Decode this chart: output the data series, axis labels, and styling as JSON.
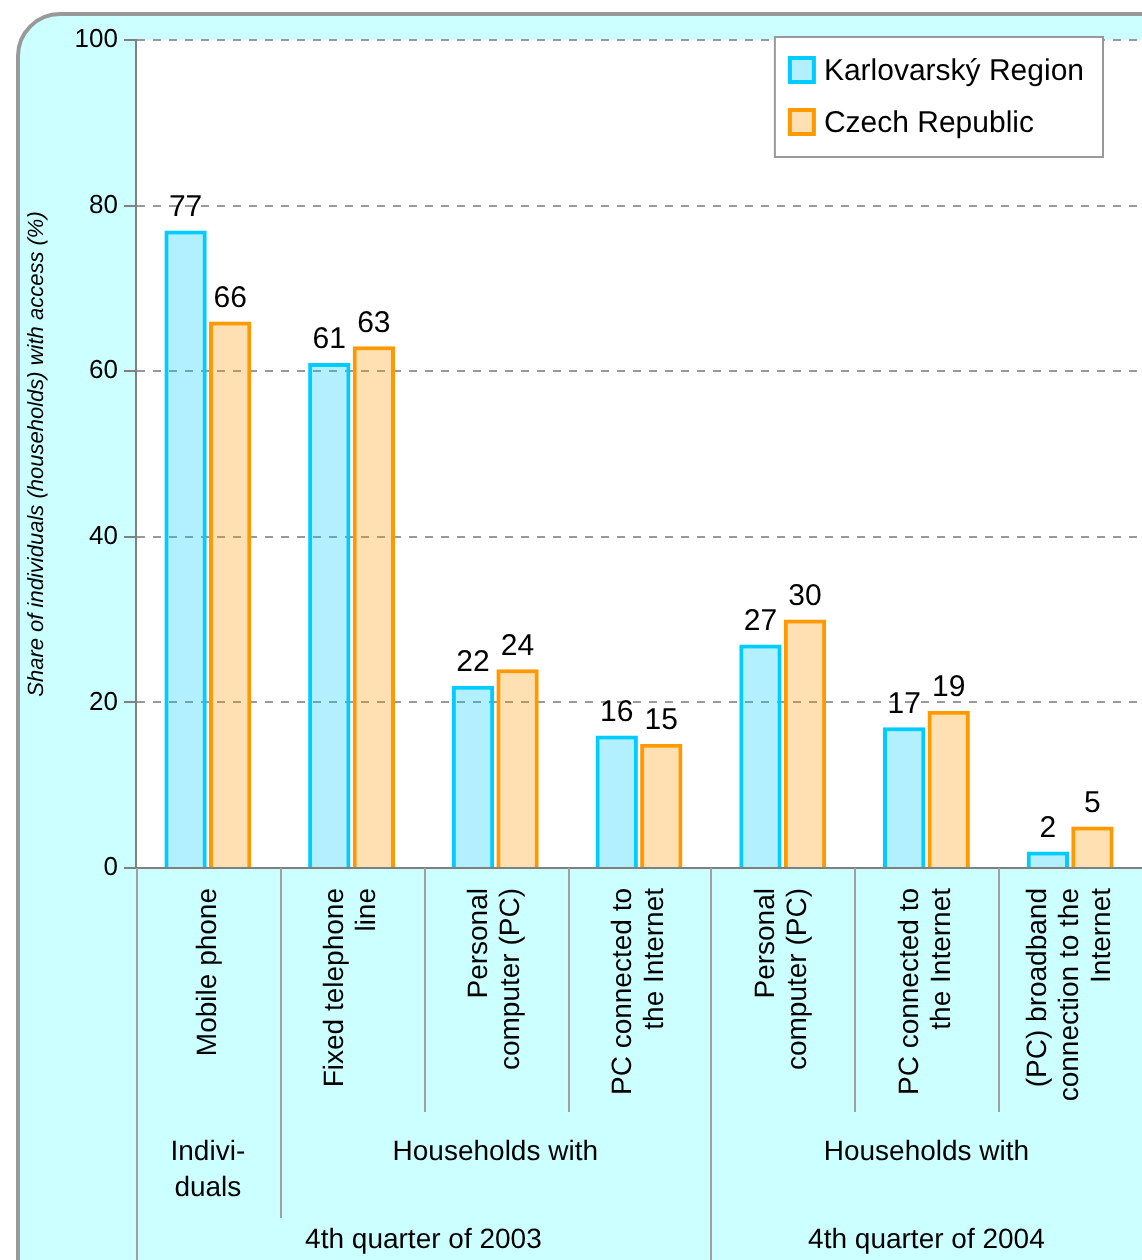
{
  "chart_data": {
    "type": "bar",
    "categories": [
      "Mobile phone",
      "Fixed telephone line",
      "Personal computer (PC)",
      "PC connected to the Internet",
      "Personal computer (PC)",
      "PC connected to the Internet",
      "(PC) broadband connection to the Internet"
    ],
    "series": [
      {
        "name": "Karlovarský Region",
        "color": "#00ccff",
        "values": [
          77,
          61,
          22,
          16,
          27,
          17,
          2
        ]
      },
      {
        "name": "Czech Republic",
        "color": "#ff9900",
        "values": [
          66,
          63,
          24,
          15,
          30,
          19,
          5
        ]
      }
    ],
    "ylabel": "Share of individuals (households) with access (%)",
    "ylim": [
      0,
      100
    ],
    "yticks": [
      0,
      20,
      40,
      60,
      80,
      100
    ],
    "grid": "y",
    "legend": "top right",
    "data_labels": true,
    "annotations": [
      "Indivi-duals",
      "Households with",
      "Households with",
      "4th quarter of 2003",
      "4th quarter of 2004"
    ]
  }
}
